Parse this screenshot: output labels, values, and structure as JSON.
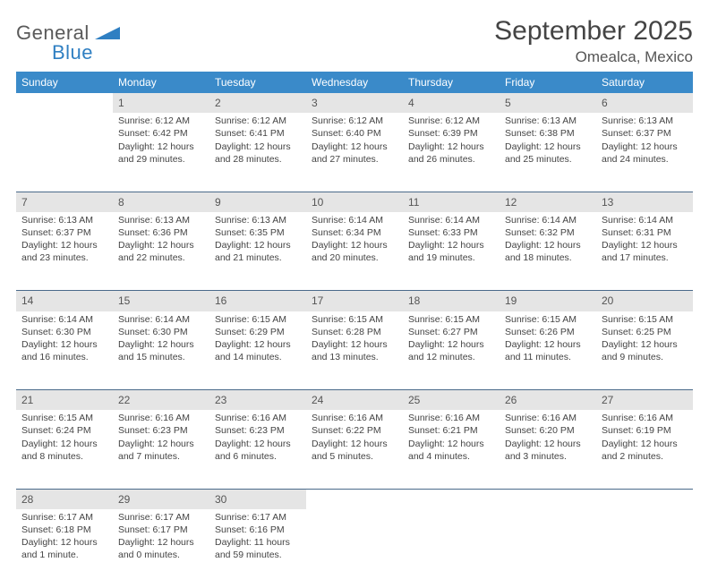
{
  "logo": {
    "line1": "General",
    "line2": "Blue"
  },
  "title": "September 2025",
  "location": "Omealca, Mexico",
  "colors": {
    "header_bg": "#3a8ac9",
    "daynum_bg": "#e5e5e5",
    "row_border": "#4a6a8a",
    "logo_blue": "#2f7fc2"
  },
  "day_headers": [
    "Sunday",
    "Monday",
    "Tuesday",
    "Wednesday",
    "Thursday",
    "Friday",
    "Saturday"
  ],
  "weeks": [
    {
      "nums": [
        "",
        "1",
        "2",
        "3",
        "4",
        "5",
        "6"
      ],
      "cells": [
        null,
        {
          "sr": "Sunrise: 6:12 AM",
          "ss": "Sunset: 6:42 PM",
          "dl": "Daylight: 12 hours and 29 minutes."
        },
        {
          "sr": "Sunrise: 6:12 AM",
          "ss": "Sunset: 6:41 PM",
          "dl": "Daylight: 12 hours and 28 minutes."
        },
        {
          "sr": "Sunrise: 6:12 AM",
          "ss": "Sunset: 6:40 PM",
          "dl": "Daylight: 12 hours and 27 minutes."
        },
        {
          "sr": "Sunrise: 6:12 AM",
          "ss": "Sunset: 6:39 PM",
          "dl": "Daylight: 12 hours and 26 minutes."
        },
        {
          "sr": "Sunrise: 6:13 AM",
          "ss": "Sunset: 6:38 PM",
          "dl": "Daylight: 12 hours and 25 minutes."
        },
        {
          "sr": "Sunrise: 6:13 AM",
          "ss": "Sunset: 6:37 PM",
          "dl": "Daylight: 12 hours and 24 minutes."
        }
      ]
    },
    {
      "nums": [
        "7",
        "8",
        "9",
        "10",
        "11",
        "12",
        "13"
      ],
      "cells": [
        {
          "sr": "Sunrise: 6:13 AM",
          "ss": "Sunset: 6:37 PM",
          "dl": "Daylight: 12 hours and 23 minutes."
        },
        {
          "sr": "Sunrise: 6:13 AM",
          "ss": "Sunset: 6:36 PM",
          "dl": "Daylight: 12 hours and 22 minutes."
        },
        {
          "sr": "Sunrise: 6:13 AM",
          "ss": "Sunset: 6:35 PM",
          "dl": "Daylight: 12 hours and 21 minutes."
        },
        {
          "sr": "Sunrise: 6:14 AM",
          "ss": "Sunset: 6:34 PM",
          "dl": "Daylight: 12 hours and 20 minutes."
        },
        {
          "sr": "Sunrise: 6:14 AM",
          "ss": "Sunset: 6:33 PM",
          "dl": "Daylight: 12 hours and 19 minutes."
        },
        {
          "sr": "Sunrise: 6:14 AM",
          "ss": "Sunset: 6:32 PM",
          "dl": "Daylight: 12 hours and 18 minutes."
        },
        {
          "sr": "Sunrise: 6:14 AM",
          "ss": "Sunset: 6:31 PM",
          "dl": "Daylight: 12 hours and 17 minutes."
        }
      ]
    },
    {
      "nums": [
        "14",
        "15",
        "16",
        "17",
        "18",
        "19",
        "20"
      ],
      "cells": [
        {
          "sr": "Sunrise: 6:14 AM",
          "ss": "Sunset: 6:30 PM",
          "dl": "Daylight: 12 hours and 16 minutes."
        },
        {
          "sr": "Sunrise: 6:14 AM",
          "ss": "Sunset: 6:30 PM",
          "dl": "Daylight: 12 hours and 15 minutes."
        },
        {
          "sr": "Sunrise: 6:15 AM",
          "ss": "Sunset: 6:29 PM",
          "dl": "Daylight: 12 hours and 14 minutes."
        },
        {
          "sr": "Sunrise: 6:15 AM",
          "ss": "Sunset: 6:28 PM",
          "dl": "Daylight: 12 hours and 13 minutes."
        },
        {
          "sr": "Sunrise: 6:15 AM",
          "ss": "Sunset: 6:27 PM",
          "dl": "Daylight: 12 hours and 12 minutes."
        },
        {
          "sr": "Sunrise: 6:15 AM",
          "ss": "Sunset: 6:26 PM",
          "dl": "Daylight: 12 hours and 11 minutes."
        },
        {
          "sr": "Sunrise: 6:15 AM",
          "ss": "Sunset: 6:25 PM",
          "dl": "Daylight: 12 hours and 9 minutes."
        }
      ]
    },
    {
      "nums": [
        "21",
        "22",
        "23",
        "24",
        "25",
        "26",
        "27"
      ],
      "cells": [
        {
          "sr": "Sunrise: 6:15 AM",
          "ss": "Sunset: 6:24 PM",
          "dl": "Daylight: 12 hours and 8 minutes."
        },
        {
          "sr": "Sunrise: 6:16 AM",
          "ss": "Sunset: 6:23 PM",
          "dl": "Daylight: 12 hours and 7 minutes."
        },
        {
          "sr": "Sunrise: 6:16 AM",
          "ss": "Sunset: 6:23 PM",
          "dl": "Daylight: 12 hours and 6 minutes."
        },
        {
          "sr": "Sunrise: 6:16 AM",
          "ss": "Sunset: 6:22 PM",
          "dl": "Daylight: 12 hours and 5 minutes."
        },
        {
          "sr": "Sunrise: 6:16 AM",
          "ss": "Sunset: 6:21 PM",
          "dl": "Daylight: 12 hours and 4 minutes."
        },
        {
          "sr": "Sunrise: 6:16 AM",
          "ss": "Sunset: 6:20 PM",
          "dl": "Daylight: 12 hours and 3 minutes."
        },
        {
          "sr": "Sunrise: 6:16 AM",
          "ss": "Sunset: 6:19 PM",
          "dl": "Daylight: 12 hours and 2 minutes."
        }
      ]
    },
    {
      "nums": [
        "28",
        "29",
        "30",
        "",
        "",
        "",
        ""
      ],
      "cells": [
        {
          "sr": "Sunrise: 6:17 AM",
          "ss": "Sunset: 6:18 PM",
          "dl": "Daylight: 12 hours and 1 minute."
        },
        {
          "sr": "Sunrise: 6:17 AM",
          "ss": "Sunset: 6:17 PM",
          "dl": "Daylight: 12 hours and 0 minutes."
        },
        {
          "sr": "Sunrise: 6:17 AM",
          "ss": "Sunset: 6:16 PM",
          "dl": "Daylight: 11 hours and 59 minutes."
        },
        null,
        null,
        null,
        null
      ]
    }
  ]
}
